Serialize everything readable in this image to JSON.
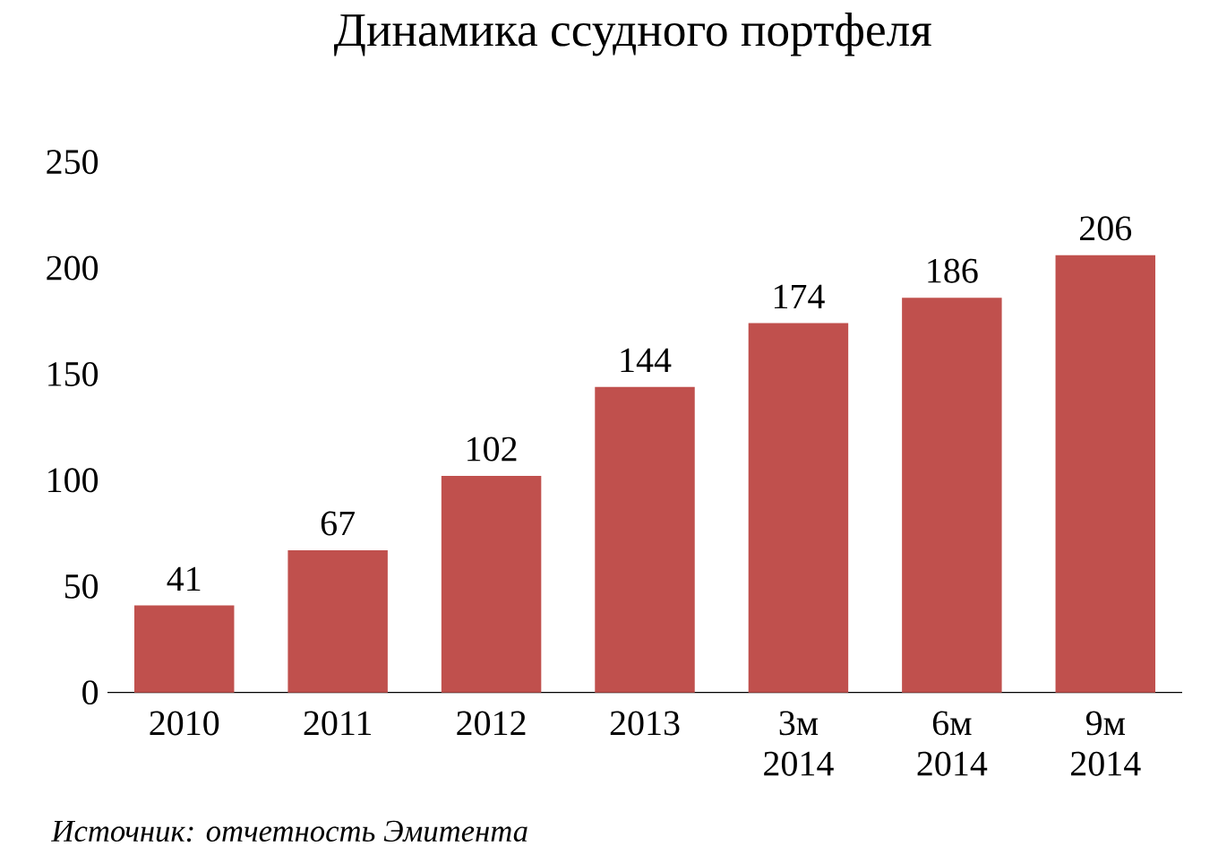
{
  "chart_data": {
    "type": "bar",
    "title": "Динамика ссудного портфеля",
    "categories": [
      "2010",
      "2011",
      "2012",
      "2013",
      "3м 2014",
      "6м 2014",
      "9м 2014"
    ],
    "values": [
      41,
      67,
      102,
      144,
      174,
      186,
      206
    ],
    "color": "#c0504d",
    "ylim": [
      0,
      250
    ],
    "yticks": [
      0,
      50,
      100,
      150,
      200,
      250
    ],
    "data_labels": true,
    "annotations": [
      "*Источник: отчетность Эмитента*"
    ]
  }
}
